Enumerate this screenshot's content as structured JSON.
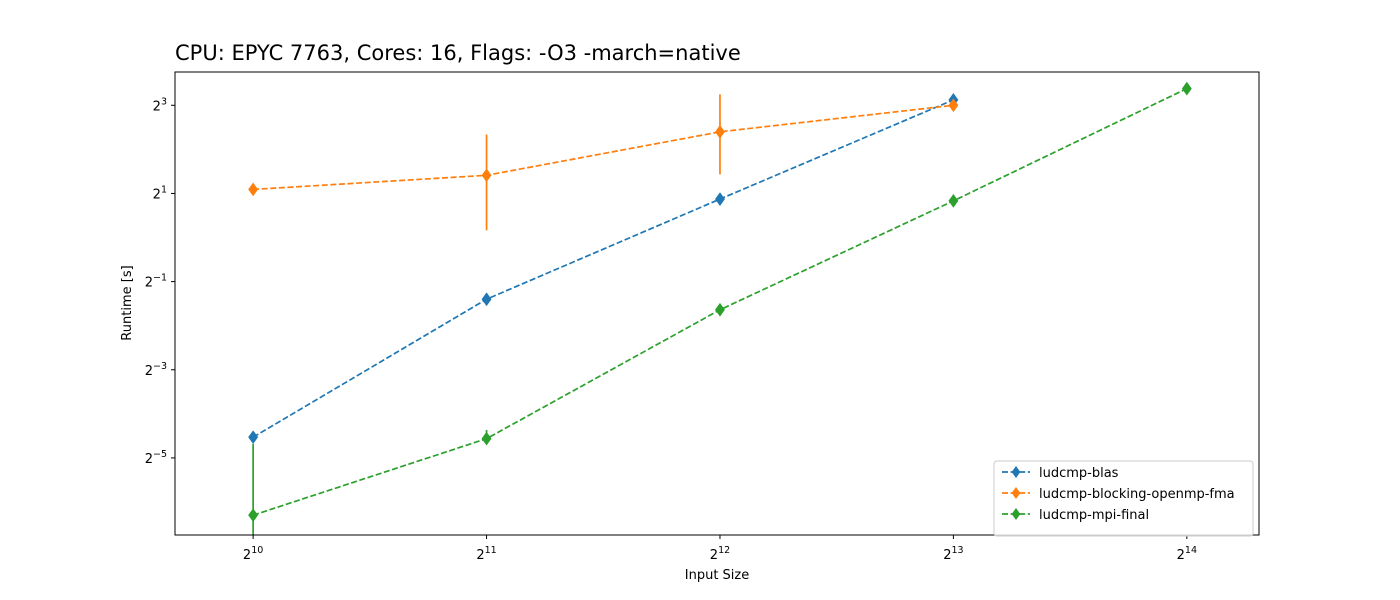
{
  "chart_data": {
    "type": "line",
    "title": "CPU: EPYC 7763, Cores: 16, Flags: -O3 -march=native",
    "xlabel": "Input Size",
    "ylabel": "Runtime [s]",
    "x_scale": "log2",
    "y_scale": "log2",
    "xlim": [
      812,
      20300
    ],
    "ylim": [
      0.0093,
      13.5
    ],
    "x_ticks": [
      {
        "value": 1024,
        "base": "2",
        "exp": "10"
      },
      {
        "value": 2048,
        "base": "2",
        "exp": "11"
      },
      {
        "value": 4096,
        "base": "2",
        "exp": "12"
      },
      {
        "value": 8192,
        "base": "2",
        "exp": "13"
      },
      {
        "value": 16384,
        "base": "2",
        "exp": "14"
      }
    ],
    "y_ticks": [
      {
        "value": 0.03125,
        "base": "2",
        "exp": "−5"
      },
      {
        "value": 0.125,
        "base": "2",
        "exp": "−3"
      },
      {
        "value": 0.5,
        "base": "2",
        "exp": "−1"
      },
      {
        "value": 2,
        "base": "2",
        "exp": "1"
      },
      {
        "value": 8,
        "base": "2",
        "exp": "3"
      }
    ],
    "grid": false,
    "legend_position": "lower-right",
    "series": [
      {
        "name": "ludcmp-blas",
        "color": "#1f77b4",
        "marker": "diamond",
        "linestyle": "dashed",
        "points": [
          {
            "x": 1024,
            "y": 0.0433,
            "err_low": 0.0405,
            "err_high": 0.0465
          },
          {
            "x": 2048,
            "y": 0.379
          },
          {
            "x": 4096,
            "y": 1.83
          },
          {
            "x": 8192,
            "y": 8.71
          }
        ]
      },
      {
        "name": "ludcmp-blocking-openmp-fma",
        "color": "#ff7f0e",
        "marker": "diamond",
        "linestyle": "dashed",
        "points": [
          {
            "x": 1024,
            "y": 2.13
          },
          {
            "x": 2048,
            "y": 2.66,
            "err_low": 1.12,
            "err_high": 5.05
          },
          {
            "x": 4096,
            "y": 5.27,
            "err_low": 2.7,
            "err_high": 9.5
          },
          {
            "x": 8192,
            "y": 8.0
          }
        ]
      },
      {
        "name": "ludcmp-mpi-final",
        "color": "#2ca02c",
        "marker": "diamond",
        "linestyle": "dashed",
        "points": [
          {
            "x": 1024,
            "y": 0.0127,
            "err_low": 0.0093,
            "err_high": 0.039
          },
          {
            "x": 2048,
            "y": 0.0423,
            "err_low": 0.0395,
            "err_high": 0.0485
          },
          {
            "x": 4096,
            "y": 0.321
          },
          {
            "x": 8192,
            "y": 1.78
          },
          {
            "x": 16384,
            "y": 10.4
          }
        ]
      }
    ]
  }
}
